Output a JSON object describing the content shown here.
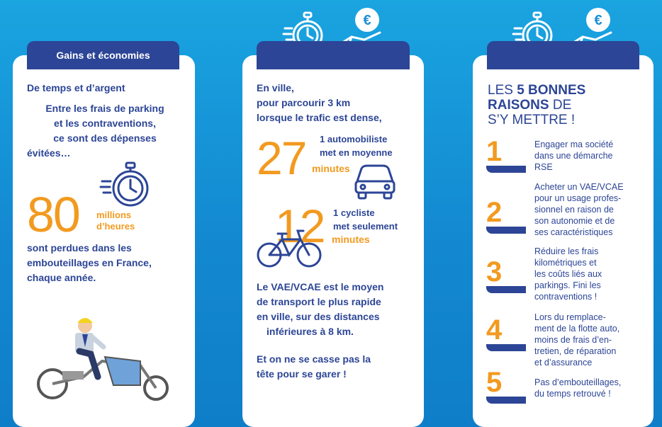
{
  "col1": {
    "tab_title": "Gains et économies",
    "subtitle": "De temps et d’argent",
    "intro": [
      "Entre les frais de parking",
      "et les contraventions,",
      "ce sont des dépenses",
      "évitées…"
    ],
    "big_number": "80",
    "big_unit": [
      "millions",
      "d’heures"
    ],
    "outro": [
      "sont perdues dans les",
      "embouteillages en France,",
      "chaque année."
    ]
  },
  "col2": {
    "intro": [
      "En ville,",
      "pour parcourir 3 km",
      "lorsque le trafic est dense,"
    ],
    "car_number": "27",
    "car_text": [
      "1 automobiliste",
      "met en moyenne"
    ],
    "car_unit": "minutes",
    "bike_number": "12",
    "bike_text": [
      "1 cycliste",
      "met seulement"
    ],
    "bike_unit": "minutes",
    "para1": [
      "Le VAE/VCAE est le moyen",
      "de transport le plus rapide",
      "en ville, sur des distances",
      "inférieures à 8 km."
    ],
    "para2": [
      "Et on ne se casse pas la",
      "tête pour se garer !"
    ]
  },
  "col3": {
    "title_line1_pre": "LES ",
    "title_line1_bold": "5 BONNES",
    "title_line2_bold": "RAISONS",
    "title_line2_post": " DE",
    "title_line3": "S’Y METTRE !",
    "reasons": [
      {
        "num": "1",
        "lines": [
          "Engager ma société",
          "dans une démarche",
          "RSE"
        ]
      },
      {
        "num": "2",
        "lines": [
          "Acheter un VAE/VCAE",
          "pour un usage profes-",
          "sionnel en raison de",
          "son autonomie et de",
          "ses caractéristiques"
        ]
      },
      {
        "num": "3",
        "lines": [
          "Réduire les frais",
          "kilométriques et",
          "les coûts liés aux",
          "parkings. Fini les",
          "contraventions !"
        ]
      },
      {
        "num": "4",
        "lines": [
          "Lors du remplace-",
          "ment de la flotte auto,",
          "moins de frais d’en-",
          "tretien, de réparation",
          "et d’assurance"
        ]
      },
      {
        "num": "5",
        "lines": [
          "Pas d’embouteillages,",
          "du temps retrouvé !"
        ]
      }
    ]
  },
  "icons": {
    "euro_symbol": "€"
  },
  "colors": {
    "navy": "#2c4596",
    "orange": "#f29a1f",
    "sky": "#1aa4e0"
  }
}
